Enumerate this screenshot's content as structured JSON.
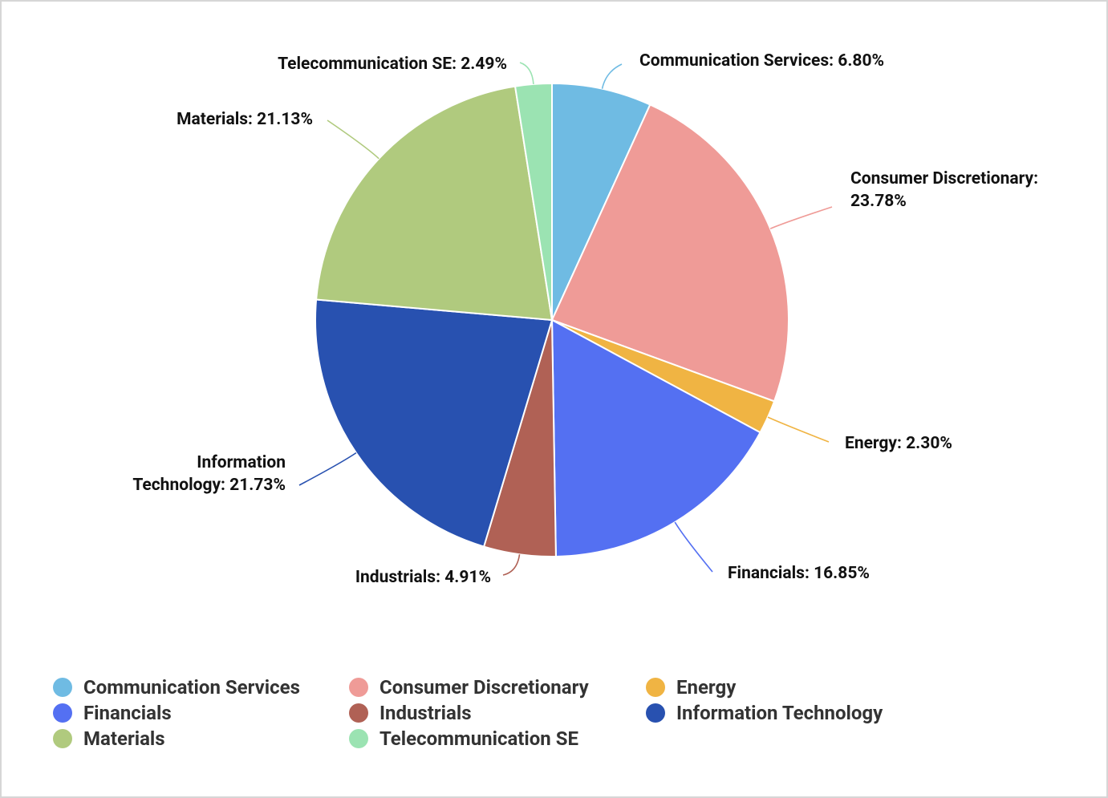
{
  "chart_data": {
    "type": "pie",
    "categories": [
      "Communication Services",
      "Consumer Discretionary",
      "Energy",
      "Financials",
      "Industrials",
      "Information Technology",
      "Materials",
      "Telecommunication SE"
    ],
    "values": [
      6.8,
      23.78,
      2.3,
      16.85,
      4.91,
      21.73,
      21.13,
      2.49
    ],
    "value_labels": [
      "Communication Services: 6.80%",
      "Consumer Discretionary: 23.78%",
      "Energy: 2.30%",
      "Financials: 16.85%",
      "Industrials: 4.91%",
      "Information Technology: 21.73%",
      "Materials: 21.13%",
      "Telecommunication SE: 2.49%"
    ],
    "colors": [
      "#6fbbe3",
      "#ef9b97",
      "#f0b443",
      "#5470f2",
      "#b06155",
      "#2851b0",
      "#b0ca7e",
      "#9be3b2"
    ],
    "legend": "bottom-left"
  }
}
